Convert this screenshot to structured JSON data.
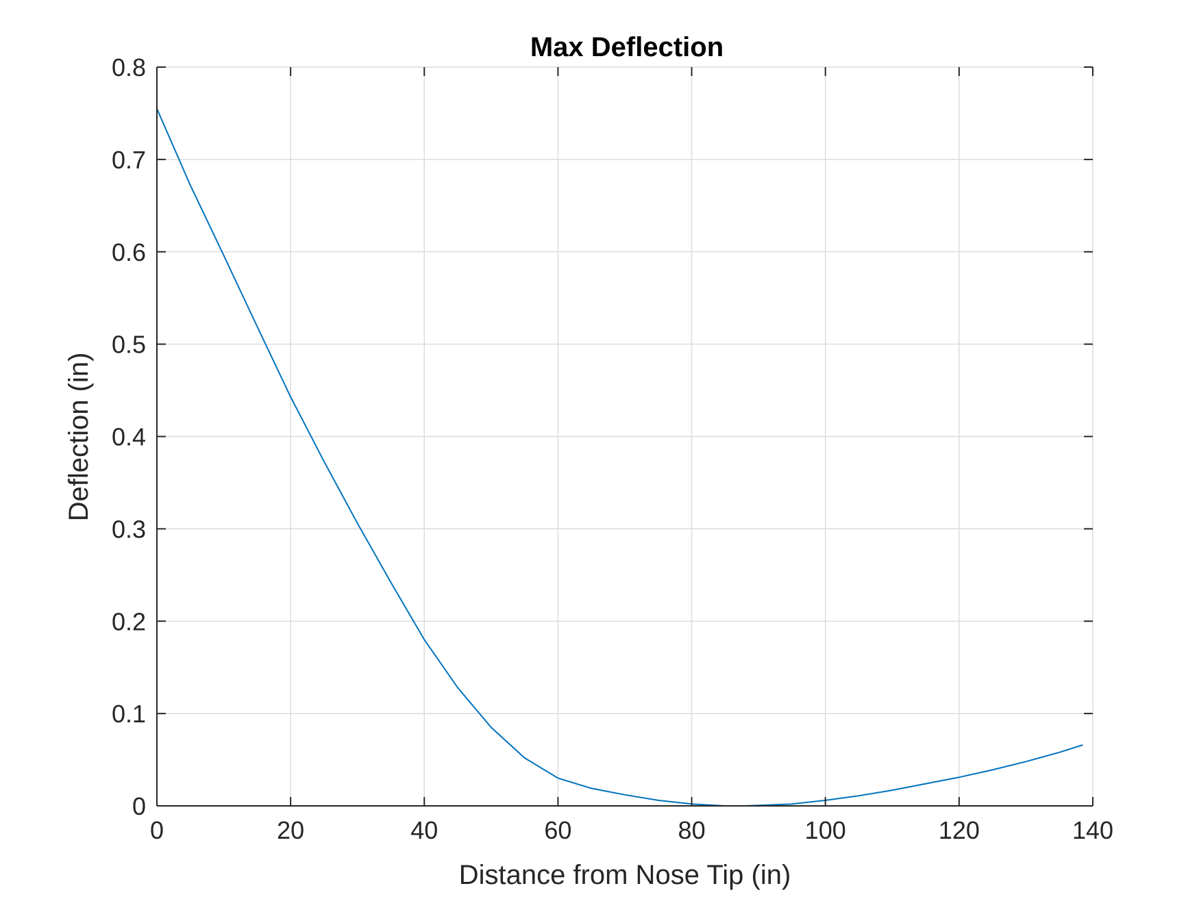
{
  "chart_data": {
    "type": "line",
    "title": "Max Deflection",
    "xlabel": "Distance from Nose Tip (in)",
    "ylabel": "Deflection (in)",
    "xlim": [
      0,
      140
    ],
    "ylim": [
      0,
      0.8
    ],
    "xticks": [
      0,
      20,
      40,
      60,
      80,
      100,
      120,
      140
    ],
    "yticks": [
      0,
      0.1,
      0.2,
      0.3,
      0.4,
      0.5,
      0.6,
      0.7,
      0.8
    ],
    "xtick_labels": [
      "0",
      "20",
      "40",
      "60",
      "80",
      "100",
      "120",
      "140"
    ],
    "ytick_labels": [
      "0",
      "0.1",
      "0.2",
      "0.3",
      "0.4",
      "0.5",
      "0.6",
      "0.7",
      "0.8"
    ],
    "grid": true,
    "colors": {
      "line": "#0072BD",
      "grid": "#dcdcdc",
      "axis": "#262626"
    },
    "series": [
      {
        "x": [
          0,
          5,
          10,
          15,
          20,
          25,
          30,
          35,
          40,
          45,
          50,
          55,
          60,
          65,
          70,
          75,
          80,
          85,
          88,
          90,
          95,
          100,
          105,
          110,
          115,
          120,
          125,
          130,
          135,
          138.5
        ],
        "y": [
          0.755,
          0.672,
          0.596,
          0.519,
          0.443,
          0.373,
          0.306,
          0.242,
          0.18,
          0.128,
          0.085,
          0.052,
          0.03,
          0.019,
          0.012,
          0.006,
          0.002,
          0.0,
          0.0,
          0.0005,
          0.002,
          0.006,
          0.011,
          0.017,
          0.024,
          0.031,
          0.039,
          0.048,
          0.058,
          0.066
        ]
      }
    ]
  }
}
